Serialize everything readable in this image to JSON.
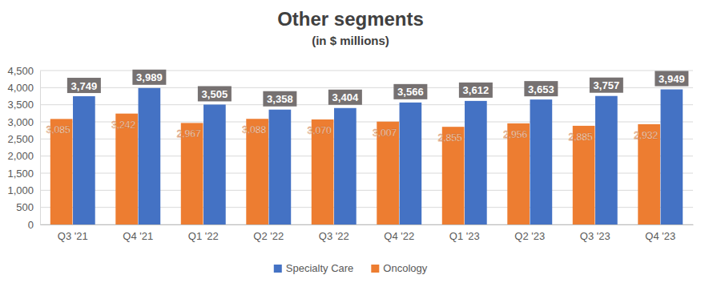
{
  "chart_data": {
    "type": "bar",
    "title": "Other segments",
    "subtitle": "(in $ millions)",
    "categories": [
      "Q3 '21",
      "Q4 '21",
      "Q1 '22",
      "Q2 '22",
      "Q3 '22",
      "Q4 '22",
      "Q1 '23",
      "Q2 '23",
      "Q3 '23",
      "Q4 '23"
    ],
    "series": [
      {
        "name": "Specialty Care",
        "color": "#4472C4",
        "values": [
          3749,
          3989,
          3505,
          3358,
          3404,
          3566,
          3612,
          3653,
          3757,
          3949
        ],
        "value_labels": [
          "3,749",
          "3,989",
          "3,505",
          "3,358",
          "3,404",
          "3,566",
          "3,612",
          "3,653",
          "3,757",
          "3,949"
        ]
      },
      {
        "name": "Oncology",
        "color": "#ED7D31",
        "values": [
          3085,
          3242,
          2967,
          3088,
          3070,
          3007,
          2855,
          2956,
          2885,
          2932
        ],
        "value_labels": [
          "3,085",
          "3,242",
          "2,967",
          "3,088",
          "3,070",
          "3,007",
          "2,855",
          "2,956",
          "2,885",
          "2,932"
        ]
      }
    ],
    "ylim": [
      0,
      4500
    ],
    "yticks": [
      0,
      500,
      {
        "value": 1000,
        "label": "1,000"
      },
      {
        "value": 1500,
        "label": "1,500"
      },
      {
        "value": 2000,
        "label": "2,000"
      },
      {
        "value": 2500,
        "label": "2,500"
      },
      {
        "value": 3000,
        "label": "3,000"
      },
      {
        "value": 3500,
        "label": "3,500"
      },
      {
        "value": 4000,
        "label": "4,000"
      },
      {
        "value": 4500,
        "label": "4,500"
      }
    ],
    "grid": true,
    "legend": "bottom",
    "data_labels": true
  }
}
